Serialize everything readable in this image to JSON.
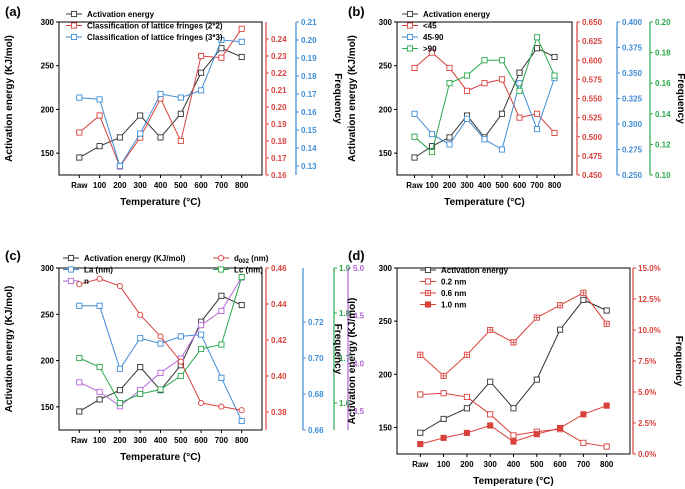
{
  "chart_data": [
    {
      "label": "(a)",
      "type": "line",
      "xlabel": "Temperature (°C)",
      "categories": [
        "Raw",
        "100",
        "200",
        "300",
        "400",
        "500",
        "600",
        "700",
        "800"
      ],
      "left_axis": {
        "label": "Activation energy (KJ/mol)",
        "range": [
          125,
          300
        ],
        "ticks": [
          150,
          200,
          250,
          300
        ]
      },
      "right_axes": [
        {
          "color": "#d9413c",
          "range": [
            0.16,
            0.25
          ],
          "ticks": [
            "0.16",
            "0.17",
            "0.18",
            "0.19",
            "0.20",
            "0.21",
            "0.22",
            "0.23",
            "0.24"
          ],
          "label": ""
        },
        {
          "color": "#3f8dd6",
          "range": [
            0.125,
            0.21
          ],
          "ticks": [
            "0.13",
            "0.14",
            "0.15",
            "0.16",
            "0.17",
            "0.18",
            "0.19",
            "0.20",
            "0.21"
          ],
          "label": "Frequency"
        }
      ],
      "series": [
        {
          "name": "Activation energy",
          "color": "#333333",
          "axis": 0,
          "marker": "square",
          "values": [
            145,
            158,
            168,
            193,
            168,
            195,
            242,
            270,
            260
          ]
        },
        {
          "name": "Classification of lattice fringes (2*2)",
          "color": "#d9413c",
          "axis": 1,
          "marker": "square",
          "values": [
            0.185,
            0.195,
            0.165,
            0.182,
            0.205,
            0.18,
            0.23,
            0.229,
            0.246
          ]
        },
        {
          "name": "Classification of lattice fringes (3*3)",
          "color": "#3f8dd6",
          "axis": 2,
          "marker": "square",
          "values": [
            0.168,
            0.167,
            0.13,
            0.148,
            0.17,
            0.168,
            0.172,
            0.2,
            0.199
          ]
        }
      ]
    },
    {
      "label": "(b)",
      "type": "line",
      "xlabel": "Temperature (°C)",
      "categories": [
        "Raw",
        "100",
        "200",
        "300",
        "400",
        "500",
        "600",
        "700",
        "800"
      ],
      "left_axis": {
        "label": "Activation energy (KJ/mol)",
        "range": [
          125,
          300
        ],
        "ticks": [
          150,
          200,
          250,
          300
        ]
      },
      "right_axes": [
        {
          "color": "#d9413c",
          "range": [
            0.45,
            0.65
          ],
          "ticks": [
            "0.450",
            "0.475",
            "0.500",
            "0.525",
            "0.550",
            "0.575",
            "0.600",
            "0.625",
            "0.650"
          ],
          "label": ""
        },
        {
          "color": "#3f8dd6",
          "range": [
            0.25,
            0.4
          ],
          "ticks": [
            "0.250",
            "0.275",
            "0.300",
            "0.325",
            "0.350",
            "0.375",
            "0.400"
          ],
          "label": ""
        },
        {
          "color": "#2aa84a",
          "range": [
            0.1,
            0.2
          ],
          "ticks": [
            "0.10",
            "0.12",
            "0.14",
            "0.16",
            "0.18",
            "0.20"
          ],
          "label": "Frequency"
        }
      ],
      "series": [
        {
          "name": "Activation energy",
          "color": "#333333",
          "axis": 0,
          "marker": "square",
          "values": [
            145,
            158,
            168,
            193,
            168,
            195,
            242,
            270,
            260
          ]
        },
        {
          "name": "<45",
          "color": "#d9413c",
          "axis": 1,
          "marker": "square",
          "values": [
            0.59,
            0.61,
            0.59,
            0.56,
            0.57,
            0.575,
            0.525,
            0.53,
            0.505
          ]
        },
        {
          "name": "45-90",
          "color": "#3f8dd6",
          "axis": 2,
          "marker": "square",
          "values": [
            0.31,
            0.29,
            0.28,
            0.305,
            0.285,
            0.275,
            0.34,
            0.295,
            0.345
          ]
        },
        {
          "name": ">90",
          "color": "#2aa84a",
          "axis": 3,
          "marker": "square",
          "values": [
            0.125,
            0.115,
            0.16,
            0.165,
            0.175,
            0.175,
            0.155,
            0.19,
            0.165
          ]
        }
      ]
    },
    {
      "label": "(c)",
      "type": "line",
      "xlabel": "Temperature (°C)",
      "categories": [
        "Raw",
        "100",
        "200",
        "300",
        "400",
        "500",
        "600",
        "700",
        "800"
      ],
      "left_axis": {
        "label": "Activation energy (KJ/mol)",
        "range": [
          125,
          300
        ],
        "ticks": [
          150,
          200,
          250,
          300
        ]
      },
      "right_axes": [
        {
          "color": "#d9413c",
          "range": [
            0.37,
            0.46
          ],
          "ticks": [
            "0.38",
            "0.40",
            "0.42",
            "0.44",
            "0.46"
          ],
          "label": ""
        },
        {
          "color": "#3f8dd6",
          "range": [
            0.66,
            0.75
          ],
          "ticks": [
            "0.66",
            "0.68",
            "0.70",
            "0.72"
          ],
          "label": ""
        },
        {
          "color": "#2aa84a",
          "range": [
            1.54,
            1.9
          ],
          "ticks": [
            "1.6",
            "1.7",
            "1.8",
            "1.9"
          ],
          "label": ""
        },
        {
          "color": "#b365d8",
          "range": [
            3.3,
            5.0
          ],
          "ticks": [
            "3.5",
            "4.0",
            "4.5",
            "5.0"
          ],
          "label": "Frequency"
        }
      ],
      "series": [
        {
          "name": "Activation energy (KJ/mol)",
          "color": "#333333",
          "axis": 0,
          "marker": "square",
          "values": [
            145,
            158,
            168,
            193,
            168,
            195,
            242,
            270,
            260
          ]
        },
        {
          "name": "La (nm)",
          "color": "#3f8dd6",
          "axis": 2,
          "marker": "square",
          "values": [
            0.729,
            0.729,
            0.694,
            0.711,
            0.708,
            0.712,
            0.713,
            0.689,
            0.665
          ]
        },
        {
          "name": "n",
          "color": "#b365d8",
          "axis": 4,
          "marker": "square",
          "values": [
            3.8,
            3.7,
            3.55,
            3.72,
            3.9,
            4.05,
            4.4,
            4.55,
            4.9
          ]
        },
        {
          "name": "d002 (nm)",
          "color": "#d9413c",
          "axis": 1,
          "marker": "circle",
          "values": [
            0.451,
            0.454,
            0.45,
            0.434,
            0.422,
            0.408,
            0.385,
            0.383,
            0.381
          ]
        },
        {
          "name": "Lc (nm)",
          "color": "#2aa84a",
          "axis": 3,
          "marker": "square",
          "values": [
            1.7,
            1.68,
            1.6,
            1.62,
            1.63,
            1.66,
            1.72,
            1.73,
            1.88
          ]
        }
      ],
      "legend_sub": "002"
    },
    {
      "label": "(d)",
      "type": "line",
      "xlabel": "Temperature (°C)",
      "categories": [
        "Raw",
        "100",
        "200",
        "300",
        "400",
        "500",
        "600",
        "700",
        "800"
      ],
      "left_axis": {
        "label": "Activation energy (KJ/mol)",
        "range": [
          125,
          300
        ],
        "ticks": [
          150,
          200,
          250,
          300
        ]
      },
      "right_axes": [
        {
          "color": "#d9413c",
          "range": [
            0,
            15
          ],
          "ticks": [
            "0.0%",
            "2.5%",
            "5.0%",
            "7.5%",
            "10.0%",
            "12.5%",
            "15.0%"
          ],
          "label": "Frequency"
        }
      ],
      "series": [
        {
          "name": "Activation energy",
          "color": "#333333",
          "axis": 0,
          "marker": "square",
          "values": [
            145,
            158,
            168,
            193,
            168,
            195,
            242,
            270,
            260
          ]
        },
        {
          "name": "0.2 nm",
          "color": "#d9413c",
          "axis": 1,
          "marker": "square",
          "values": [
            4.8,
            4.9,
            4.6,
            3.2,
            1.5,
            1.8,
            2.0,
            0.9,
            0.6
          ]
        },
        {
          "name": "0.6 nm",
          "color": "#d9413c",
          "axis": 1,
          "marker": "grid",
          "values": [
            8.0,
            6.3,
            8.0,
            10.0,
            9.0,
            11.0,
            12.0,
            13.0,
            10.5
          ]
        },
        {
          "name": "1.0 nm",
          "color": "#d9413c",
          "axis": 1,
          "marker": "filled",
          "values": [
            0.8,
            1.3,
            1.7,
            2.3,
            1.0,
            1.6,
            2.1,
            3.2,
            3.9
          ]
        }
      ]
    }
  ]
}
